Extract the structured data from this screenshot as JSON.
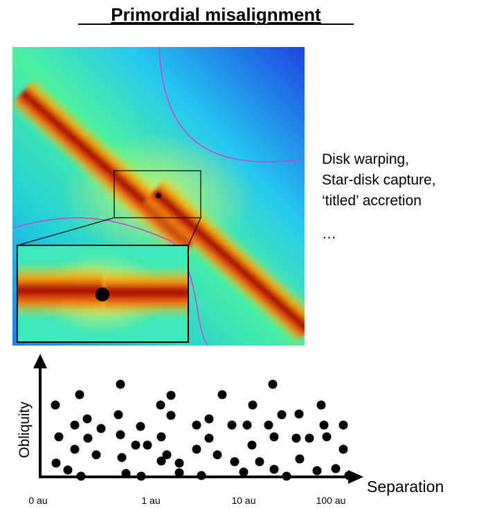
{
  "title": "Primordial misalignment",
  "annotation": [
    "Disk warping,",
    "Star-disk capture,",
    "‘titled’ accretion",
    "…"
  ],
  "plot": {
    "y_label": "Obliquity",
    "x_label": "Separation",
    "x_tick_labels": [
      "0 au",
      "1 au",
      "10 au",
      "100 au"
    ]
  }
}
